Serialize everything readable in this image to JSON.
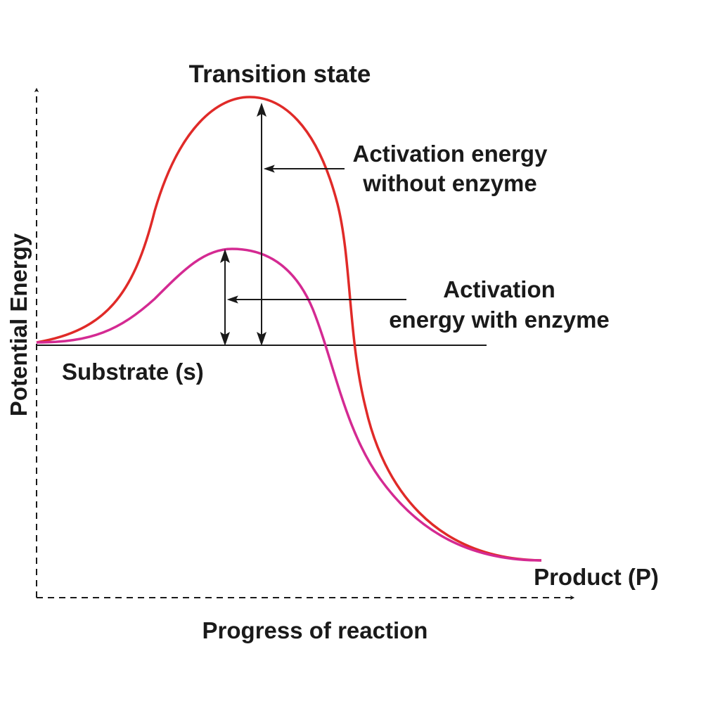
{
  "labels": {
    "transition_state": "Transition state",
    "activation_without": [
      "Activation energy",
      "without enzyme"
    ],
    "activation_with": [
      "Activation",
      "energy with enzyme"
    ],
    "substrate": "Substrate (s)",
    "product": "Product (P)",
    "x_axis": "Progress of reaction",
    "y_axis": "Potential Energy"
  },
  "colors": {
    "curve_without_enzyme": "#e02a28",
    "curve_with_enzyme": "#d42a92",
    "lines": "#1a1a1a"
  }
}
